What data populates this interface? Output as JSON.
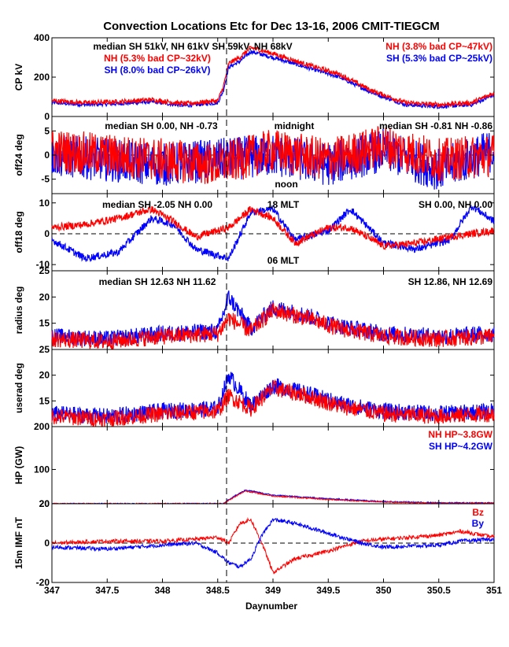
{
  "chart_data": {
    "type": "line",
    "title": "Convection Locations Etc for Dec 13-16, 2006 CMIT-TIEGCM",
    "xlabel": "Daynumber",
    "xlim": [
      347,
      351
    ],
    "xticks": [
      "347",
      "347.5",
      "348",
      "348.5",
      "349",
      "349.5",
      "350",
      "350.5",
      "351"
    ],
    "event_line_x": 348.58,
    "colors": {
      "nh": "#ff0000",
      "sh": "#0000ff",
      "axis": "#000000"
    },
    "panels": [
      {
        "id": "cp",
        "ylabel": "CP kV",
        "ylim": [
          0,
          400
        ],
        "yticks": [
          "0",
          "200",
          "400"
        ],
        "annotations": [
          {
            "text": "median SH 51kV, NH 61kV  SH 59kV, NH 68kV",
            "color": "#000000"
          },
          {
            "text": "NH (5.3% bad CP~32kV)",
            "color": "#ff0000"
          },
          {
            "text": "SH (8.0% bad CP~26kV)",
            "color": "#0000ff"
          },
          {
            "text": "NH (3.8% bad CP~47kV)",
            "color": "#ff0000"
          },
          {
            "text": "SH (5.3% bad CP~25kV)",
            "color": "#0000ff"
          }
        ],
        "series": [
          {
            "name": "SH",
            "x": [
              347.0,
              347.3,
              347.6,
              347.9,
              348.2,
              348.5,
              348.55,
              348.6,
              348.7,
              348.8,
              349.0,
              349.3,
              349.6,
              349.9,
              350.2,
              350.5,
              350.8,
              351.0
            ],
            "y": [
              70,
              60,
              65,
              75,
              55,
              70,
              130,
              250,
              280,
              330,
              300,
              250,
              200,
              120,
              60,
              50,
              60,
              110
            ],
            "noise": 10
          },
          {
            "name": "NH",
            "x": [
              347.0,
              347.3,
              347.6,
              347.9,
              348.2,
              348.5,
              348.55,
              348.6,
              348.7,
              348.8,
              349.0,
              349.3,
              349.6,
              349.9,
              350.2,
              350.5,
              350.8,
              351.0
            ],
            "y": [
              80,
              70,
              75,
              85,
              65,
              80,
              150,
              270,
              300,
              350,
              320,
              265,
              215,
              130,
              70,
              60,
              70,
              120
            ],
            "noise": 12
          }
        ]
      },
      {
        "id": "off24",
        "ylabel": "off24 deg",
        "ylim": [
          -8,
          8
        ],
        "yticks": [
          "-5",
          "0",
          "5"
        ],
        "zero_line": true,
        "annotations": [
          {
            "text": "median SH 0.00, NH -0.73",
            "color": "#000000"
          },
          {
            "text": "midnight",
            "color": "#000000"
          },
          {
            "text": "median SH -0.81 NH -0.86",
            "color": "#000000"
          },
          {
            "text": "noon",
            "color": "#000000"
          }
        ],
        "series": [
          {
            "name": "SH",
            "x": [
              347.0,
              347.5,
              348.0,
              348.5,
              349.0,
              349.5,
              350.0,
              350.5,
              351.0
            ],
            "y": [
              0,
              -1,
              -2,
              -1,
              0,
              -2,
              1,
              -3,
              1
            ],
            "noise": 4.5
          },
          {
            "name": "NH",
            "x": [
              347.0,
              347.5,
              348.0,
              348.5,
              349.0,
              349.5,
              350.0,
              350.5,
              351.0
            ],
            "y": [
              1,
              0,
              -1,
              -2,
              1,
              -1,
              2,
              -1,
              0
            ],
            "noise": 4.5
          }
        ]
      },
      {
        "id": "off18",
        "ylabel": "off18 deg",
        "ylim": [
          -12,
          13
        ],
        "yticks": [
          "-10",
          "0",
          "10"
        ],
        "zero_line": true,
        "annotations": [
          {
            "text": "median SH -2.05 NH 0.00",
            "color": "#000000"
          },
          {
            "text": "18 MLT",
            "color": "#000000"
          },
          {
            "text": "SH 0.00, NH 0.00",
            "color": "#000000"
          },
          {
            "text": "06 MLT",
            "color": "#000000"
          }
        ],
        "series": [
          {
            "name": "SH",
            "x": [
              347.0,
              347.3,
              347.6,
              347.9,
              348.1,
              348.3,
              348.6,
              348.8,
              349.0,
              349.2,
              349.5,
              349.7,
              350.0,
              350.3,
              350.6,
              350.8,
              351.0
            ],
            "y": [
              -2,
              -8,
              -6,
              5,
              3,
              -5,
              -8,
              7,
              8,
              -2,
              1,
              8,
              -3,
              -5,
              -2,
              9,
              4
            ],
            "noise": 1.2
          },
          {
            "name": "NH",
            "x": [
              347.0,
              347.3,
              347.6,
              347.9,
              348.1,
              348.3,
              348.6,
              348.8,
              349.0,
              349.2,
              349.5,
              349.7,
              350.0,
              350.3,
              350.6,
              350.8,
              351.0
            ],
            "y": [
              2,
              3,
              5,
              8,
              4,
              -1,
              2,
              8,
              5,
              -3,
              2,
              2,
              -4,
              -3,
              -1,
              0,
              1
            ],
            "noise": 1.2
          }
        ]
      },
      {
        "id": "radius",
        "ylabel": "radius deg",
        "ylim": [
          10,
          25
        ],
        "yticks": [
          "15",
          "20",
          "25"
        ],
        "annotations": [
          {
            "text": "median SH 12.63 NH 11.62",
            "color": "#000000"
          },
          {
            "text": "SH 12.86, NH 12.69",
            "color": "#000000"
          }
        ],
        "series": [
          {
            "name": "SH",
            "x": [
              347.0,
              347.5,
              348.0,
              348.5,
              348.6,
              348.8,
              349.0,
              349.3,
              349.6,
              350.0,
              350.5,
              351.0
            ],
            "y": [
              12.5,
              12.0,
              13.0,
              13.5,
              20.0,
              14.0,
              18.0,
              16.5,
              14.5,
              13.0,
              12.5,
              13.0
            ],
            "noise": 1.6
          },
          {
            "name": "NH",
            "x": [
              347.0,
              347.5,
              348.0,
              348.5,
              348.6,
              348.8,
              349.0,
              349.3,
              349.6,
              350.0,
              350.5,
              351.0
            ],
            "y": [
              12.0,
              11.5,
              12.5,
              13.0,
              16.0,
              13.5,
              17.5,
              16.0,
              14.0,
              12.5,
              12.0,
              12.5
            ],
            "noise": 1.6
          }
        ]
      },
      {
        "id": "userad",
        "ylabel": "userad deg",
        "ylim": [
          10,
          25
        ],
        "yticks": [
          "15",
          "20",
          "25"
        ],
        "series": [
          {
            "name": "SH",
            "x": [
              347.0,
              347.5,
              348.0,
              348.5,
              348.6,
              348.8,
              349.0,
              349.3,
              349.6,
              350.0,
              350.5,
              351.0
            ],
            "y": [
              12.5,
              12.0,
              13.0,
              13.5,
              20.0,
              14.0,
              18.0,
              16.5,
              14.5,
              13.0,
              12.5,
              13.0
            ],
            "noise": 1.6
          },
          {
            "name": "NH",
            "x": [
              347.0,
              347.5,
              348.0,
              348.5,
              348.6,
              348.8,
              349.0,
              349.3,
              349.6,
              350.0,
              350.5,
              351.0
            ],
            "y": [
              12.0,
              11.5,
              12.5,
              13.0,
              16.0,
              13.5,
              17.5,
              16.0,
              14.0,
              12.5,
              12.0,
              12.5
            ],
            "noise": 1.6
          }
        ]
      },
      {
        "id": "hp",
        "ylabel": "HP (GW)",
        "ylim": [
          20,
          200
        ],
        "yticks": [
          "20",
          "100",
          "200"
        ],
        "annotations": [
          {
            "text": "NH  HP~3.8GW",
            "color": "#ff0000"
          },
          {
            "text": "SH  HP~4.2GW",
            "color": "#0000ff"
          }
        ],
        "series": [
          {
            "name": "SH",
            "x": [
              347.0,
              348.55,
              348.6,
              348.75,
              349.0,
              349.5,
              350.0,
              350.5,
              351.0
            ],
            "y": [
              20,
              20,
              30,
              52,
              40,
              32,
              25,
              22,
              22
            ],
            "noise": 1.5
          },
          {
            "name": "NH",
            "x": [
              347.0,
              348.55,
              348.6,
              348.75,
              349.0,
              349.5,
              350.0,
              350.5,
              351.0
            ],
            "y": [
              20,
              20,
              28,
              50,
              38,
              30,
              24,
              21,
              21
            ],
            "noise": 1.5
          }
        ]
      },
      {
        "id": "imf",
        "ylabel": "15m IMF nT",
        "ylim": [
          -20,
          20
        ],
        "yticks": [
          "-20",
          "0",
          "20"
        ],
        "zero_line": true,
        "annotations": [
          {
            "text": "Bz",
            "color": "#ff0000"
          },
          {
            "text": "By",
            "color": "#0000ff"
          }
        ],
        "series": [
          {
            "name": "Bz",
            "x": [
              347.0,
              347.5,
              348.0,
              348.3,
              348.5,
              348.6,
              348.7,
              348.8,
              348.9,
              349.0,
              349.2,
              349.5,
              349.8,
              350.0,
              350.5,
              350.7,
              351.0
            ],
            "y": [
              0,
              1,
              1,
              2,
              3,
              0,
              10,
              12,
              0,
              -15,
              -8,
              -4,
              1,
              2,
              4,
              6,
              3
            ],
            "noise": 1.0
          },
          {
            "name": "By",
            "x": [
              347.0,
              347.5,
              348.0,
              348.3,
              348.5,
              348.6,
              348.7,
              348.8,
              348.9,
              349.0,
              349.2,
              349.5,
              349.8,
              350.0,
              350.5,
              350.7,
              351.0
            ],
            "y": [
              -2,
              -3,
              -1,
              0,
              -5,
              -10,
              -12,
              -8,
              4,
              12,
              10,
              5,
              0,
              -2,
              -1,
              1,
              2
            ],
            "noise": 1.0
          }
        ]
      }
    ]
  }
}
